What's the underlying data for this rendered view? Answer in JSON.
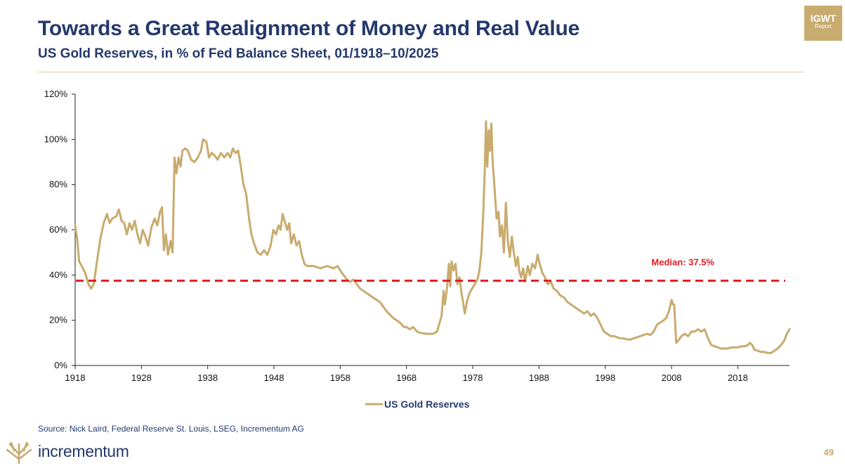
{
  "header": {
    "title": "Towards a Great Realignment of Money and Real Value",
    "subtitle": "US Gold Reserves, in % of Fed Balance Sheet, 01/1918–10/2025",
    "badge_top": "IGWT",
    "badge_bottom": "Report"
  },
  "footer": {
    "source": "Source: Nick Laird, Federal Reserve St. Louis, LSEG, Incrementum AG",
    "brand": "incrementum",
    "page_number": "49"
  },
  "colors": {
    "title": "#24396b",
    "gold": "#c8ab6e",
    "median": "#e31b23",
    "axis": "#222222"
  },
  "chart_data": {
    "type": "line",
    "title": "US Gold Reserves, in % of Fed Balance Sheet, 01/1918–10/2025",
    "xlabel": "",
    "ylabel": "",
    "xlim": [
      1918,
      2025.8
    ],
    "ylim": [
      0,
      120
    ],
    "x_ticks": [
      1918,
      1928,
      1938,
      1948,
      1958,
      1968,
      1978,
      1988,
      1998,
      2008,
      2018
    ],
    "y_ticks": [
      0,
      20,
      40,
      60,
      80,
      100,
      120
    ],
    "y_tick_labels": [
      "0%",
      "20%",
      "40%",
      "60%",
      "80%",
      "100%",
      "120%"
    ],
    "grid": false,
    "legend": {
      "position": "bottom-center",
      "entries": [
        "US Gold Reserves"
      ]
    },
    "annotation": {
      "text": "Median: 37.5%",
      "value": 37.5
    },
    "series": [
      {
        "name": "US Gold Reserves",
        "points": [
          [
            1918.0,
            62
          ],
          [
            1918.3,
            56
          ],
          [
            1918.6,
            46
          ],
          [
            1919.0,
            44
          ],
          [
            1919.5,
            41
          ],
          [
            1920.0,
            36
          ],
          [
            1920.4,
            34
          ],
          [
            1920.8,
            36
          ],
          [
            1921.3,
            46
          ],
          [
            1921.8,
            56
          ],
          [
            1922.3,
            63
          ],
          [
            1922.8,
            67
          ],
          [
            1923.2,
            63
          ],
          [
            1923.6,
            65
          ],
          [
            1924.2,
            66
          ],
          [
            1924.6,
            69
          ],
          [
            1925.0,
            64
          ],
          [
            1925.4,
            63
          ],
          [
            1925.8,
            58
          ],
          [
            1926.2,
            63
          ],
          [
            1926.6,
            60
          ],
          [
            1927.0,
            64
          ],
          [
            1927.4,
            58
          ],
          [
            1927.8,
            54
          ],
          [
            1928.2,
            60
          ],
          [
            1928.6,
            57
          ],
          [
            1929.0,
            53
          ],
          [
            1929.5,
            61
          ],
          [
            1930.0,
            65
          ],
          [
            1930.4,
            62
          ],
          [
            1930.8,
            68
          ],
          [
            1931.1,
            70
          ],
          [
            1931.4,
            51
          ],
          [
            1931.7,
            58
          ],
          [
            1932.0,
            49
          ],
          [
            1932.4,
            55
          ],
          [
            1932.7,
            50
          ],
          [
            1933.0,
            92
          ],
          [
            1933.3,
            85
          ],
          [
            1933.6,
            92
          ],
          [
            1933.9,
            88
          ],
          [
            1934.2,
            95
          ],
          [
            1934.6,
            96
          ],
          [
            1935.0,
            95
          ],
          [
            1935.5,
            91
          ],
          [
            1936.0,
            90
          ],
          [
            1936.5,
            92
          ],
          [
            1937.0,
            95
          ],
          [
            1937.3,
            100
          ],
          [
            1937.8,
            99
          ],
          [
            1938.2,
            92
          ],
          [
            1938.6,
            94
          ],
          [
            1939.0,
            93
          ],
          [
            1939.5,
            91
          ],
          [
            1940.0,
            94
          ],
          [
            1940.5,
            92
          ],
          [
            1941.0,
            94
          ],
          [
            1941.4,
            92
          ],
          [
            1941.8,
            96
          ],
          [
            1942.2,
            94
          ],
          [
            1942.6,
            95
          ],
          [
            1943.0,
            88
          ],
          [
            1943.4,
            80
          ],
          [
            1943.8,
            76
          ],
          [
            1944.2,
            66
          ],
          [
            1944.6,
            58
          ],
          [
            1945.0,
            54
          ],
          [
            1945.5,
            50
          ],
          [
            1946.0,
            49
          ],
          [
            1946.5,
            51
          ],
          [
            1947.0,
            49
          ],
          [
            1947.5,
            53
          ],
          [
            1947.9,
            60
          ],
          [
            1948.3,
            58
          ],
          [
            1948.7,
            62
          ],
          [
            1949.0,
            60
          ],
          [
            1949.3,
            67
          ],
          [
            1949.6,
            64
          ],
          [
            1950.0,
            60
          ],
          [
            1950.3,
            63
          ],
          [
            1950.6,
            54
          ],
          [
            1951.0,
            58
          ],
          [
            1951.4,
            53
          ],
          [
            1951.8,
            55
          ],
          [
            1952.2,
            49
          ],
          [
            1952.6,
            45
          ],
          [
            1953.0,
            44
          ],
          [
            1954.0,
            44
          ],
          [
            1955.0,
            43
          ],
          [
            1956.0,
            44
          ],
          [
            1957.0,
            43
          ],
          [
            1957.6,
            44
          ],
          [
            1958.0,
            42
          ],
          [
            1958.5,
            40
          ],
          [
            1959.0,
            38
          ],
          [
            1959.5,
            37
          ],
          [
            1960.0,
            38
          ],
          [
            1960.5,
            36
          ],
          [
            1961.0,
            34
          ],
          [
            1962.0,
            32
          ],
          [
            1963.0,
            30
          ],
          [
            1964.0,
            28
          ],
          [
            1965.0,
            24
          ],
          [
            1966.0,
            21
          ],
          [
            1967.0,
            19
          ],
          [
            1967.6,
            17
          ],
          [
            1968.0,
            17
          ],
          [
            1968.5,
            16
          ],
          [
            1969.0,
            17
          ],
          [
            1969.6,
            15
          ],
          [
            1970.0,
            14.5
          ],
          [
            1971.0,
            14
          ],
          [
            1972.0,
            14
          ],
          [
            1972.6,
            15
          ],
          [
            1973.0,
            19
          ],
          [
            1973.3,
            22
          ],
          [
            1973.6,
            33
          ],
          [
            1973.8,
            27
          ],
          [
            1974.1,
            34
          ],
          [
            1974.4,
            45
          ],
          [
            1974.6,
            35
          ],
          [
            1974.8,
            46
          ],
          [
            1975.1,
            42
          ],
          [
            1975.4,
            45
          ],
          [
            1975.7,
            36
          ],
          [
            1976.0,
            39
          ],
          [
            1976.3,
            32
          ],
          [
            1976.6,
            27
          ],
          [
            1976.8,
            23
          ],
          [
            1977.1,
            28
          ],
          [
            1977.5,
            32
          ],
          [
            1977.9,
            34
          ],
          [
            1978.3,
            36
          ],
          [
            1978.7,
            38
          ],
          [
            1979.0,
            42
          ],
          [
            1979.3,
            50
          ],
          [
            1979.6,
            68
          ],
          [
            1979.8,
            85
          ],
          [
            1980.0,
            108
          ],
          [
            1980.2,
            88
          ],
          [
            1980.4,
            104
          ],
          [
            1980.6,
            95
          ],
          [
            1980.8,
            107
          ],
          [
            1981.0,
            90
          ],
          [
            1981.3,
            78
          ],
          [
            1981.6,
            65
          ],
          [
            1981.9,
            68
          ],
          [
            1982.1,
            57
          ],
          [
            1982.4,
            62
          ],
          [
            1982.7,
            50
          ],
          [
            1983.0,
            72
          ],
          [
            1983.3,
            55
          ],
          [
            1983.6,
            48
          ],
          [
            1983.9,
            57
          ],
          [
            1984.2,
            50
          ],
          [
            1984.5,
            44
          ],
          [
            1984.8,
            48
          ],
          [
            1985.0,
            42
          ],
          [
            1985.3,
            39
          ],
          [
            1985.6,
            43
          ],
          [
            1985.9,
            37
          ],
          [
            1986.3,
            44
          ],
          [
            1986.6,
            40
          ],
          [
            1987.0,
            45
          ],
          [
            1987.4,
            43
          ],
          [
            1987.8,
            49
          ],
          [
            1988.1,
            45
          ],
          [
            1988.5,
            41
          ],
          [
            1988.9,
            39
          ],
          [
            1989.3,
            36
          ],
          [
            1989.8,
            37
          ],
          [
            1990.2,
            34
          ],
          [
            1990.7,
            33
          ],
          [
            1991.2,
            31
          ],
          [
            1991.8,
            30
          ],
          [
            1992.3,
            28
          ],
          [
            1992.8,
            27
          ],
          [
            1993.3,
            26
          ],
          [
            1993.8,
            25
          ],
          [
            1994.3,
            24
          ],
          [
            1994.8,
            23
          ],
          [
            1995.3,
            24
          ],
          [
            1995.8,
            22
          ],
          [
            1996.3,
            23
          ],
          [
            1996.8,
            21
          ],
          [
            1997.3,
            18
          ],
          [
            1997.8,
            15
          ],
          [
            1998.3,
            14
          ],
          [
            1998.8,
            13
          ],
          [
            1999.3,
            13
          ],
          [
            1999.8,
            12.5
          ],
          [
            2000.3,
            12
          ],
          [
            2000.8,
            12
          ],
          [
            2001.3,
            11.5
          ],
          [
            2001.8,
            11.5
          ],
          [
            2002.3,
            12
          ],
          [
            2002.8,
            12.5
          ],
          [
            2003.3,
            13
          ],
          [
            2003.8,
            13.5
          ],
          [
            2004.3,
            14
          ],
          [
            2004.8,
            13.5
          ],
          [
            2005.3,
            15
          ],
          [
            2005.8,
            18
          ],
          [
            2006.3,
            19
          ],
          [
            2006.8,
            20
          ],
          [
            2007.2,
            21
          ],
          [
            2007.6,
            24
          ],
          [
            2008.0,
            29
          ],
          [
            2008.2,
            27
          ],
          [
            2008.4,
            27
          ],
          [
            2008.7,
            10
          ],
          [
            2009.0,
            11
          ],
          [
            2009.5,
            13
          ],
          [
            2010.0,
            14
          ],
          [
            2010.5,
            13
          ],
          [
            2011.0,
            15
          ],
          [
            2011.5,
            15
          ],
          [
            2012.0,
            16
          ],
          [
            2012.5,
            15
          ],
          [
            2013.0,
            16
          ],
          [
            2013.5,
            12
          ],
          [
            2014.0,
            9
          ],
          [
            2014.5,
            8.5
          ],
          [
            2015.0,
            8
          ],
          [
            2015.5,
            7.5
          ],
          [
            2016.0,
            7.5
          ],
          [
            2016.5,
            7.5
          ],
          [
            2017.0,
            8
          ],
          [
            2017.5,
            8
          ],
          [
            2018.0,
            8
          ],
          [
            2018.5,
            8.5
          ],
          [
            2019.0,
            8.5
          ],
          [
            2019.5,
            9
          ],
          [
            2019.8,
            10
          ],
          [
            2020.2,
            9
          ],
          [
            2020.5,
            7
          ],
          [
            2021.0,
            6.5
          ],
          [
            2021.5,
            6
          ],
          [
            2022.0,
            6
          ],
          [
            2022.5,
            5.5
          ],
          [
            2023.0,
            5.5
          ],
          [
            2023.5,
            6.5
          ],
          [
            2024.0,
            7.5
          ],
          [
            2024.5,
            9
          ],
          [
            2025.0,
            11
          ],
          [
            2025.4,
            14
          ],
          [
            2025.8,
            16
          ]
        ]
      },
      {
        "name": "Median",
        "values": [
          37.5
        ]
      }
    ]
  }
}
